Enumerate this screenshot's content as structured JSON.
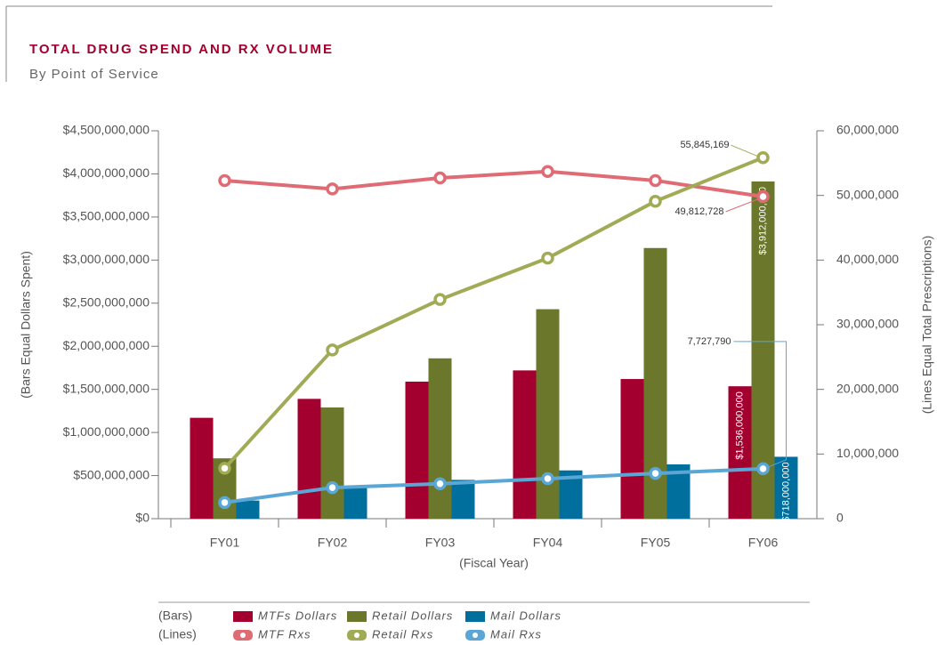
{
  "chart_data": {
    "type": "bar",
    "title": "TOTAL DRUG SPEND AND RX VOLUME",
    "subtitle": "By Point of Service",
    "y_label": "(Bars Equal Dollars Spent)",
    "y2_label": "(Lines Equal Total Prescriptions)",
    "x_label": "(Fiscal Year)",
    "legend_bars_label": "(Bars)",
    "legend_lines_label": "(Lines)",
    "categories": [
      "FY01",
      "FY02",
      "FY03",
      "FY04",
      "FY05",
      "FY06"
    ],
    "ylim": [
      0,
      4500000000
    ],
    "yticks": [
      {
        "value": 0,
        "label": "$0"
      },
      {
        "value": 500000000,
        "label": "$500,000,000"
      },
      {
        "value": 1000000000,
        "label": "$1,000,000,000"
      },
      {
        "value": 1500000000,
        "label": "$1,500,000,000"
      },
      {
        "value": 2000000000,
        "label": "$2,000,000,000"
      },
      {
        "value": 2500000000,
        "label": "$2,500,000,000"
      },
      {
        "value": 3000000000,
        "label": "$3,000,000,000"
      },
      {
        "value": 3500000000,
        "label": "$3,500,000,000"
      },
      {
        "value": 4000000000,
        "label": "$4,000,000,000"
      },
      {
        "value": 4500000000,
        "label": "$4,500,000,000"
      }
    ],
    "y2lim": [
      0,
      60000000
    ],
    "y2ticks": [
      0,
      {
        "value": 10000000,
        "label": "10,000,000"
      },
      {
        "value": 20000000,
        "label": "20,000,000"
      },
      {
        "value": 30000000,
        "label": "30,000,000"
      },
      {
        "value": 40000000,
        "label": "40,000,000"
      },
      {
        "value": 50000000,
        "label": "50,000,000"
      },
      {
        "value": 60000000,
        "label": "60,000,000"
      }
    ],
    "series": [
      {
        "name": "MTFs Dollars",
        "type": "bar",
        "color": "#a3002f",
        "values": [
          1170000000,
          1390000000,
          1590000000,
          1720000000,
          1620000000,
          1536000000
        ],
        "value_labels": [
          null,
          null,
          null,
          null,
          null,
          "$1,536,000,000"
        ]
      },
      {
        "name": "Retail Dollars",
        "type": "bar",
        "color": "#6b772b",
        "values": [
          700000000,
          1290000000,
          1860000000,
          2430000000,
          3140000000,
          3912000000
        ],
        "value_labels": [
          null,
          null,
          null,
          null,
          null,
          "$3,912,000,000"
        ]
      },
      {
        "name": "Mail Dollars",
        "type": "bar",
        "color": "#006f9e",
        "values": [
          210000000,
          370000000,
          450000000,
          560000000,
          630000000,
          718000000
        ],
        "value_labels": [
          null,
          null,
          null,
          null,
          null,
          "$718,000,000"
        ]
      },
      {
        "name": "MTF Rxs",
        "type": "line",
        "axis": "y2",
        "color": "#df6b74",
        "values": [
          52300000,
          51000000,
          52700000,
          53700000,
          52300000,
          49812728
        ],
        "value_labels": [
          null,
          null,
          null,
          null,
          null,
          "49,812,728"
        ]
      },
      {
        "name": "Retail Rxs",
        "type": "line",
        "axis": "y2",
        "color": "#a1ab55",
        "values": [
          7800000,
          26100000,
          33900000,
          40300000,
          49100000,
          55845169
        ],
        "value_labels": [
          null,
          null,
          null,
          null,
          null,
          "55,845,169"
        ]
      },
      {
        "name": "Mail Rxs",
        "type": "line",
        "axis": "y2",
        "color": "#5aa7d6",
        "values": [
          2500000,
          4800000,
          5400000,
          6200000,
          7000000,
          7727790
        ],
        "value_labels": [
          null,
          null,
          null,
          null,
          null,
          "7,727,790"
        ]
      }
    ]
  }
}
